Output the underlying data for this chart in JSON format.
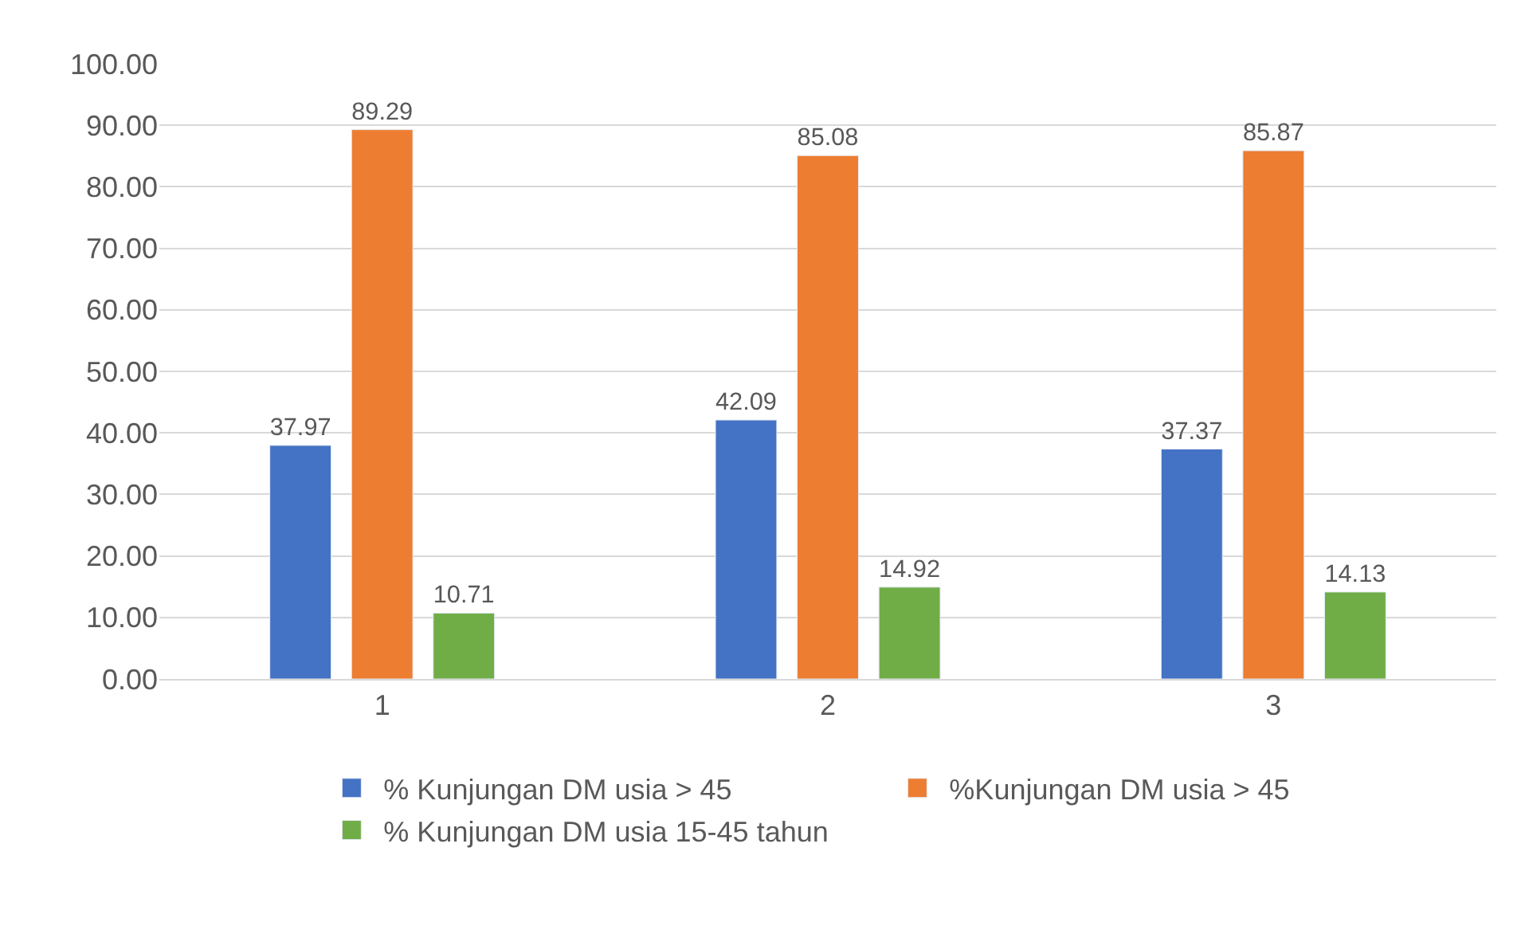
{
  "chart_data": {
    "type": "bar",
    "categories": [
      "1",
      "2",
      "3"
    ],
    "series": [
      {
        "name": "% Kunjungan DM usia > 45",
        "color": "#4472c4",
        "values": [
          37.97,
          42.09,
          37.37
        ]
      },
      {
        "name": "%Kunjungan DM usia > 45",
        "color": "#ed7d31",
        "values": [
          89.29,
          85.08,
          85.87
        ]
      },
      {
        "name": "% Kunjungan DM usia 15-45 tahun",
        "color": "#70ad47",
        "values": [
          10.71,
          14.92,
          14.13
        ]
      }
    ],
    "ylim": [
      0,
      100
    ],
    "yticks": [
      {
        "value": 0,
        "label": "0.00"
      },
      {
        "value": 10,
        "label": "10.00"
      },
      {
        "value": 20,
        "label": "20.00"
      },
      {
        "value": 30,
        "label": "30.00"
      },
      {
        "value": 40,
        "label": "40.00"
      },
      {
        "value": 50,
        "label": "50.00"
      },
      {
        "value": 60,
        "label": "60.00"
      },
      {
        "value": 70,
        "label": "70.00"
      },
      {
        "value": 80,
        "label": "80.00"
      },
      {
        "value": 90,
        "label": "90.00"
      },
      {
        "value": 100,
        "label": "100.00"
      }
    ],
    "grid": "y",
    "legend": "bottom",
    "data_labels": true
  }
}
